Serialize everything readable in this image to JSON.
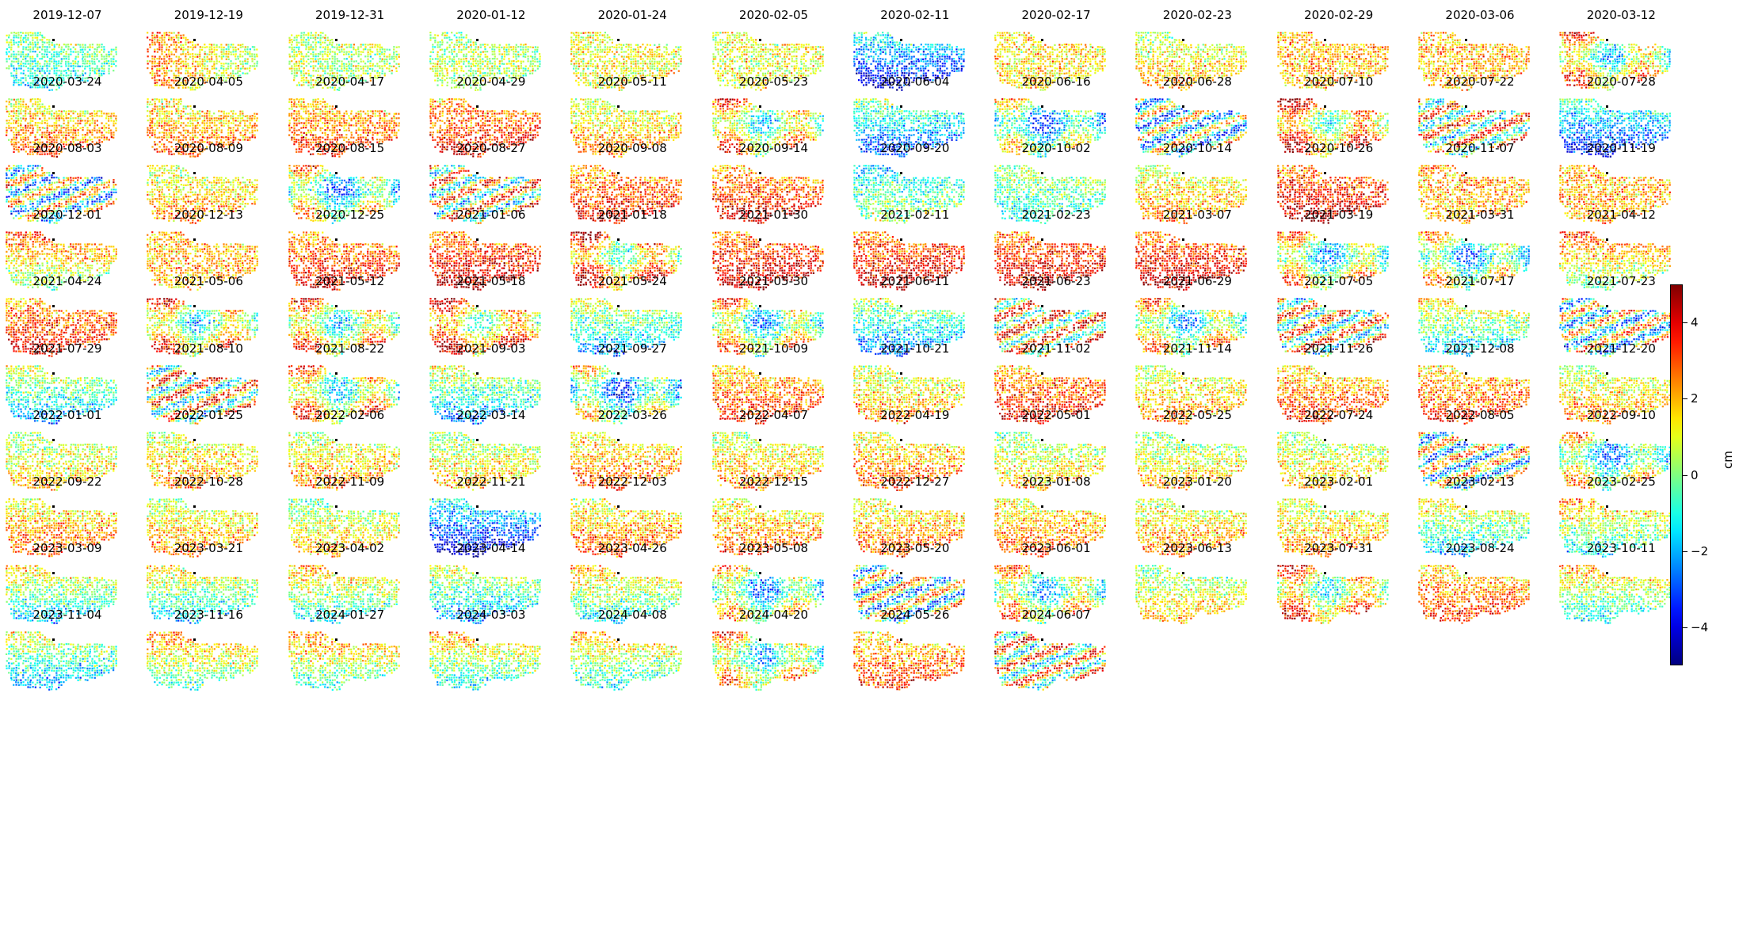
{
  "chart_data": {
    "type": "heatmap",
    "description_kind": "small-multiples displacement maps",
    "colormap": "jet",
    "clim": [
      -5,
      5
    ],
    "colorbar": {
      "label": "cm",
      "ticks": [
        4,
        2,
        0,
        -2,
        -4
      ],
      "tick_labels": [
        "4",
        "2",
        "0",
        "−2",
        "−4"
      ]
    },
    "grid": false,
    "legend": "right",
    "panels": [
      {
        "date": "2019-12-07",
        "mean": 0.3,
        "pattern": "south-grad"
      },
      {
        "date": "2019-12-19",
        "mean": 1.5,
        "pattern": "west-warm"
      },
      {
        "date": "2019-12-31",
        "mean": 0.5,
        "pattern": "flat"
      },
      {
        "date": "2020-01-12",
        "mean": 0.5,
        "pattern": "flat"
      },
      {
        "date": "2020-01-24",
        "mean": 1.2,
        "pattern": "flat"
      },
      {
        "date": "2020-02-05",
        "mean": 1.0,
        "pattern": "flat"
      },
      {
        "date": "2020-02-11",
        "mean": -1.5,
        "pattern": "south-cold"
      },
      {
        "date": "2020-02-17",
        "mean": 1.5,
        "pattern": "flat"
      },
      {
        "date": "2020-02-23",
        "mean": 0.8,
        "pattern": "south-warm"
      },
      {
        "date": "2020-02-29",
        "mean": 2.0,
        "pattern": "flat"
      },
      {
        "date": "2020-03-06",
        "mean": 2.0,
        "pattern": "flat"
      },
      {
        "date": "2020-03-12",
        "mean": 1.5,
        "pattern": "mixed"
      },
      {
        "date": "2020-03-24",
        "mean": 1.5,
        "pattern": "south-warm"
      },
      {
        "date": "2020-04-05",
        "mean": 1.5,
        "pattern": "south-warm"
      },
      {
        "date": "2020-04-17",
        "mean": 2.0,
        "pattern": "south-warm"
      },
      {
        "date": "2020-04-29",
        "mean": 2.5,
        "pattern": "south-warm"
      },
      {
        "date": "2020-05-11",
        "mean": 1.0,
        "pattern": "south-warm"
      },
      {
        "date": "2020-05-23",
        "mean": 1.5,
        "pattern": "mixed"
      },
      {
        "date": "2020-06-04",
        "mean": -0.5,
        "pattern": "south-cold"
      },
      {
        "date": "2020-06-16",
        "mean": 0.0,
        "pattern": "mixed"
      },
      {
        "date": "2020-06-28",
        "mean": -0.5,
        "pattern": "stripes"
      },
      {
        "date": "2020-07-10",
        "mean": 2.5,
        "pattern": "mixed"
      },
      {
        "date": "2020-07-22",
        "mean": 1.0,
        "pattern": "stripes"
      },
      {
        "date": "2020-07-28",
        "mean": -1.0,
        "pattern": "south-cold"
      },
      {
        "date": "2020-08-03",
        "mean": 0.0,
        "pattern": "stripes"
      },
      {
        "date": "2020-08-09",
        "mean": 1.0,
        "pattern": "south-warm"
      },
      {
        "date": "2020-08-15",
        "mean": 0.5,
        "pattern": "mixed"
      },
      {
        "date": "2020-08-27",
        "mean": 1.0,
        "pattern": "stripes"
      },
      {
        "date": "2020-09-08",
        "mean": 2.5,
        "pattern": "south-warm"
      },
      {
        "date": "2020-09-14",
        "mean": 2.5,
        "pattern": "south-warm"
      },
      {
        "date": "2020-09-20",
        "mean": -1.0,
        "pattern": "south-warm"
      },
      {
        "date": "2020-10-02",
        "mean": 0.5,
        "pattern": "south-grad"
      },
      {
        "date": "2020-10-14",
        "mean": 1.0,
        "pattern": "south-warm"
      },
      {
        "date": "2020-10-26",
        "mean": 3.0,
        "pattern": "south-warm"
      },
      {
        "date": "2020-11-07",
        "mean": 2.0,
        "pattern": "flat"
      },
      {
        "date": "2020-11-19",
        "mean": 2.0,
        "pattern": "flat"
      },
      {
        "date": "2020-12-01",
        "mean": 2.5,
        "pattern": "south-cold"
      },
      {
        "date": "2020-12-13",
        "mean": 2.0,
        "pattern": "flat"
      },
      {
        "date": "2020-12-25",
        "mean": 2.5,
        "pattern": "south-warm"
      },
      {
        "date": "2021-01-06",
        "mean": 3.0,
        "pattern": "south-warm"
      },
      {
        "date": "2021-01-18",
        "mean": 2.5,
        "pattern": "mixed"
      },
      {
        "date": "2021-01-30",
        "mean": 3.0,
        "pattern": "south-warm"
      },
      {
        "date": "2021-02-11",
        "mean": 3.0,
        "pattern": "south-warm"
      },
      {
        "date": "2021-02-23",
        "mean": 3.0,
        "pattern": "south-warm"
      },
      {
        "date": "2021-03-07",
        "mean": 3.0,
        "pattern": "south-warm"
      },
      {
        "date": "2021-03-19",
        "mean": 1.0,
        "pattern": "mixed"
      },
      {
        "date": "2021-03-31",
        "mean": 0.5,
        "pattern": "mixed"
      },
      {
        "date": "2021-04-12",
        "mean": 2.5,
        "pattern": "south-cold"
      },
      {
        "date": "2021-04-24",
        "mean": 2.5,
        "pattern": "south-warm"
      },
      {
        "date": "2021-05-06",
        "mean": 1.5,
        "pattern": "mixed"
      },
      {
        "date": "2021-05-12",
        "mean": 1.5,
        "pattern": "mixed"
      },
      {
        "date": "2021-05-18",
        "mean": 2.5,
        "pattern": "mixed"
      },
      {
        "date": "2021-05-24",
        "mean": 0.5,
        "pattern": "south-cold"
      },
      {
        "date": "2021-05-30",
        "mean": 1.0,
        "pattern": "mixed"
      },
      {
        "date": "2021-06-11",
        "mean": 0.0,
        "pattern": "south-cold"
      },
      {
        "date": "2021-06-23",
        "mean": 1.5,
        "pattern": "stripes"
      },
      {
        "date": "2021-06-29",
        "mean": 1.0,
        "pattern": "mixed"
      },
      {
        "date": "2021-07-05",
        "mean": 1.0,
        "pattern": "stripes"
      },
      {
        "date": "2021-07-17",
        "mean": 1.0,
        "pattern": "south-cold"
      },
      {
        "date": "2021-07-23",
        "mean": 0.0,
        "pattern": "stripes"
      },
      {
        "date": "2021-07-29",
        "mean": 0.5,
        "pattern": "south-cold"
      },
      {
        "date": "2021-08-10",
        "mean": 1.0,
        "pattern": "stripes"
      },
      {
        "date": "2021-08-22",
        "mean": 1.5,
        "pattern": "mixed"
      },
      {
        "date": "2021-09-03",
        "mean": 0.5,
        "pattern": "south-cold"
      },
      {
        "date": "2021-09-27",
        "mean": 0.0,
        "pattern": "mixed"
      },
      {
        "date": "2021-10-09",
        "mean": 2.0,
        "pattern": "south-warm"
      },
      {
        "date": "2021-10-21",
        "mean": 1.0,
        "pattern": "south-warm"
      },
      {
        "date": "2021-11-02",
        "mean": 2.5,
        "pattern": "south-warm"
      },
      {
        "date": "2021-11-14",
        "mean": 1.0,
        "pattern": "south-warm"
      },
      {
        "date": "2021-11-26",
        "mean": 2.0,
        "pattern": "south-warm"
      },
      {
        "date": "2021-12-08",
        "mean": 2.0,
        "pattern": "south-warm"
      },
      {
        "date": "2021-12-20",
        "mean": 1.0,
        "pattern": "south-warm"
      },
      {
        "date": "2022-01-01",
        "mean": 0.5,
        "pattern": "south-warm"
      },
      {
        "date": "2022-01-25",
        "mean": 1.0,
        "pattern": "south-warm"
      },
      {
        "date": "2022-02-06",
        "mean": 1.0,
        "pattern": "south-warm"
      },
      {
        "date": "2022-03-14",
        "mean": 0.5,
        "pattern": "south-warm"
      },
      {
        "date": "2022-03-26",
        "mean": 1.5,
        "pattern": "south-warm"
      },
      {
        "date": "2022-04-07",
        "mean": 1.0,
        "pattern": "south-warm"
      },
      {
        "date": "2022-04-19",
        "mean": 1.5,
        "pattern": "south-warm"
      },
      {
        "date": "2022-05-01",
        "mean": 0.5,
        "pattern": "south-warm"
      },
      {
        "date": "2022-05-25",
        "mean": 0.5,
        "pattern": "south-warm"
      },
      {
        "date": "2022-07-24",
        "mean": 0.5,
        "pattern": "south-warm"
      },
      {
        "date": "2022-08-05",
        "mean": 0.0,
        "pattern": "stripes"
      },
      {
        "date": "2022-09-10",
        "mean": 0.5,
        "pattern": "mixed"
      },
      {
        "date": "2022-09-22",
        "mean": 1.5,
        "pattern": "south-warm"
      },
      {
        "date": "2022-10-28",
        "mean": 1.0,
        "pattern": "south-warm"
      },
      {
        "date": "2022-11-09",
        "mean": 0.5,
        "pattern": "south-warm"
      },
      {
        "date": "2022-11-21",
        "mean": -1.5,
        "pattern": "south-cold"
      },
      {
        "date": "2022-12-03",
        "mean": 1.5,
        "pattern": "south-warm"
      },
      {
        "date": "2022-12-15",
        "mean": 1.5,
        "pattern": "south-warm"
      },
      {
        "date": "2022-12-27",
        "mean": 1.5,
        "pattern": "south-warm"
      },
      {
        "date": "2023-01-08",
        "mean": 1.5,
        "pattern": "south-warm"
      },
      {
        "date": "2023-01-20",
        "mean": 1.0,
        "pattern": "south-warm"
      },
      {
        "date": "2023-02-01",
        "mean": 1.0,
        "pattern": "south-warm"
      },
      {
        "date": "2023-02-13",
        "mean": 1.0,
        "pattern": "south-cold"
      },
      {
        "date": "2023-02-25",
        "mean": 1.5,
        "pattern": "south-cold"
      },
      {
        "date": "2023-03-09",
        "mean": 1.0,
        "pattern": "south-cold"
      },
      {
        "date": "2023-03-21",
        "mean": 1.0,
        "pattern": "south-cold"
      },
      {
        "date": "2023-04-02",
        "mean": 1.5,
        "pattern": "south-cold"
      },
      {
        "date": "2023-04-14",
        "mean": 0.5,
        "pattern": "south-cold"
      },
      {
        "date": "2023-04-26",
        "mean": 1.5,
        "pattern": "south-cold"
      },
      {
        "date": "2023-05-08",
        "mean": 0.5,
        "pattern": "mixed"
      },
      {
        "date": "2023-05-20",
        "mean": 0.0,
        "pattern": "stripes"
      },
      {
        "date": "2023-06-01",
        "mean": 1.0,
        "pattern": "mixed"
      },
      {
        "date": "2023-06-13",
        "mean": 0.5,
        "pattern": "south-warm"
      },
      {
        "date": "2023-07-31",
        "mean": 2.0,
        "pattern": "mixed"
      },
      {
        "date": "2023-08-24",
        "mean": 2.0,
        "pattern": "south-warm"
      },
      {
        "date": "2023-10-11",
        "mean": 1.5,
        "pattern": "south-cold"
      },
      {
        "date": "2023-11-04",
        "mean": 0.5,
        "pattern": "south-cold"
      },
      {
        "date": "2023-11-16",
        "mean": 2.0,
        "pattern": "south-cold"
      },
      {
        "date": "2024-01-27",
        "mean": 2.0,
        "pattern": "south-cold"
      },
      {
        "date": "2024-03-03",
        "mean": 1.5,
        "pattern": "south-cold"
      },
      {
        "date": "2024-04-08",
        "mean": 1.5,
        "pattern": "south-cold"
      },
      {
        "date": "2024-04-20",
        "mean": 1.0,
        "pattern": "mixed"
      },
      {
        "date": "2024-05-26",
        "mean": 2.0,
        "pattern": "south-warm"
      },
      {
        "date": "2024-06-07",
        "mean": 1.0,
        "pattern": "stripes"
      }
    ]
  }
}
